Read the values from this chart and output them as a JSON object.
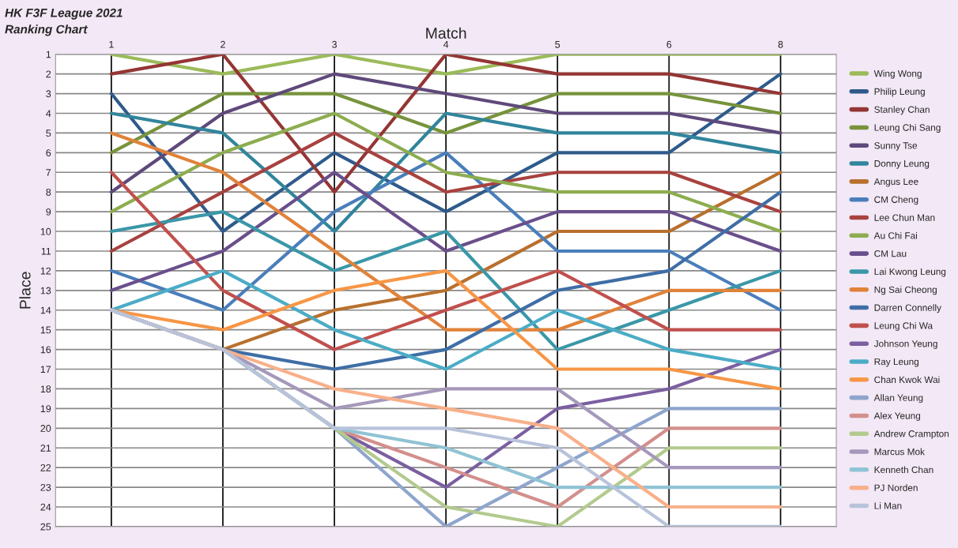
{
  "chart_data": {
    "type": "line",
    "title": "HK F3F League 2021",
    "subtitle": "Ranking Chart",
    "xlabel": "Match",
    "ylabel": "Place",
    "categories": [
      "1",
      "2",
      "3",
      "4",
      "5",
      "6",
      "8"
    ],
    "ylim": [
      25,
      1
    ],
    "yticks": [
      1,
      2,
      3,
      4,
      5,
      6,
      7,
      8,
      9,
      10,
      11,
      12,
      13,
      14,
      15,
      16,
      17,
      18,
      19,
      20,
      21,
      22,
      23,
      24,
      25
    ],
    "grid": true,
    "legend": "right",
    "marker": "none",
    "line_style": "solid",
    "series": [
      {
        "name": "Wing Wong",
        "color": "#9bbb59",
        "values": [
          1,
          2,
          1,
          2,
          1,
          1,
          1
        ]
      },
      {
        "name": "Philip Leung",
        "color": "#2f5b8c",
        "values": [
          3,
          10,
          6,
          9,
          6,
          6,
          2
        ]
      },
      {
        "name": "Stanley Chan",
        "color": "#943634",
        "values": [
          2,
          1,
          8,
          1,
          2,
          2,
          3
        ]
      },
      {
        "name": "Leung Chi Sang",
        "color": "#77933c",
        "values": [
          6,
          3,
          3,
          5,
          3,
          3,
          4
        ]
      },
      {
        "name": "Sunny Tse",
        "color": "#5f497a",
        "values": [
          8,
          4,
          2,
          3,
          4,
          4,
          5
        ]
      },
      {
        "name": "Donny Leung",
        "color": "#31859c",
        "values": [
          4,
          5,
          10,
          4,
          5,
          5,
          6
        ]
      },
      {
        "name": "Angus Lee",
        "color": "#b8702e",
        "values": [
          14,
          16,
          14,
          13,
          10,
          10,
          7
        ]
      },
      {
        "name": "CM Cheng",
        "color": "#4a7ebb",
        "values": [
          12,
          14,
          9,
          6,
          11,
          11,
          14
        ]
      },
      {
        "name": "Lee Chun Man",
        "color": "#a8423f",
        "values": [
          11,
          8,
          5,
          8,
          7,
          7,
          9
        ]
      },
      {
        "name": "Au Chi Fai",
        "color": "#8cad4f",
        "values": [
          9,
          6,
          4,
          7,
          8,
          8,
          10
        ]
      },
      {
        "name": "CM Lau",
        "color": "#6a4f8c",
        "values": [
          13,
          11,
          7,
          11,
          9,
          9,
          11
        ]
      },
      {
        "name": "Lai Kwong Leung",
        "color": "#3a97a8",
        "values": [
          10,
          9,
          12,
          10,
          16,
          14,
          12
        ]
      },
      {
        "name": "Ng Sai Cheong",
        "color": "#e0823a",
        "values": [
          5,
          7,
          11,
          15,
          15,
          13,
          13
        ]
      },
      {
        "name": "Darren Connelly",
        "color": "#3f6ea6",
        "values": [
          14,
          16,
          17,
          16,
          13,
          12,
          8
        ]
      },
      {
        "name": "Leung Chi Wa",
        "color": "#c0504d",
        "values": [
          7,
          13,
          16,
          14,
          12,
          15,
          15
        ]
      },
      {
        "name": "Johnson Yeung",
        "color": "#7b5fa0",
        "values": [
          14,
          16,
          20,
          23,
          19,
          18,
          16
        ]
      },
      {
        "name": "Ray Leung",
        "color": "#4bacc6",
        "values": [
          14,
          12,
          15,
          17,
          14,
          16,
          17
        ]
      },
      {
        "name": "Chan Kwok Wai",
        "color": "#f79646",
        "values": [
          14,
          15,
          13,
          12,
          17,
          17,
          18
        ]
      },
      {
        "name": "Allan Yeung",
        "color": "#8ea5cd",
        "values": [
          14,
          16,
          20,
          25,
          22,
          19,
          19
        ]
      },
      {
        "name": "Alex Yeung",
        "color": "#d38f8c",
        "values": [
          14,
          16,
          20,
          22,
          24,
          20,
          20
        ]
      },
      {
        "name": "Andrew Crampton",
        "color": "#b3ca8e",
        "values": [
          14,
          16,
          20,
          24,
          25,
          21,
          21
        ]
      },
      {
        "name": "Marcus Mok",
        "color": "#a598bb",
        "values": [
          14,
          16,
          19,
          18,
          18,
          22,
          22
        ]
      },
      {
        "name": "Kenneth Chan",
        "color": "#90c3d4",
        "values": [
          14,
          16,
          20,
          21,
          23,
          23,
          23
        ]
      },
      {
        "name": "PJ Norden",
        "color": "#f8b08a",
        "values": [
          14,
          16,
          18,
          19,
          20,
          24,
          24
        ]
      },
      {
        "name": "Li Man",
        "color": "#b8c3db",
        "values": [
          14,
          16,
          20,
          20,
          21,
          25,
          25
        ]
      }
    ]
  }
}
